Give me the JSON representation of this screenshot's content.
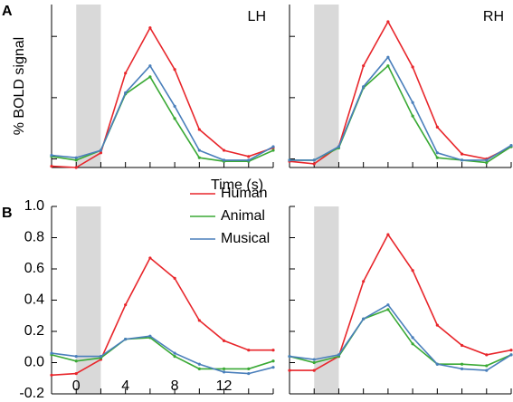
{
  "chart_data": [
    {
      "type": "line",
      "panel_label": "A",
      "title": "LH",
      "ylabel": "% BOLD signal",
      "xlabel": "Time (s)",
      "x": [
        -2,
        0,
        2,
        4,
        6,
        8,
        10,
        12,
        14,
        16
      ],
      "xlim": [
        -2,
        16
      ],
      "minor_xticks": [
        -2,
        0,
        2,
        4,
        6,
        8,
        10,
        12,
        14,
        16
      ],
      "ylim": [
        -0.07,
        1.26
      ],
      "yticks": [
        0,
        0.5,
        1
      ],
      "show_ytick_labels": false,
      "shade": [
        0,
        2
      ],
      "series": [
        {
          "name": "Human",
          "color": "#e8262b",
          "values": [
            -0.06,
            -0.07,
            0.05,
            0.7,
            1.07,
            0.73,
            0.24,
            0.07,
            0.02,
            0.09
          ]
        },
        {
          "name": "Animal",
          "color": "#3aa935",
          "values": [
            0.02,
            -0.01,
            0.07,
            0.53,
            0.67,
            0.33,
            0.01,
            -0.02,
            -0.02,
            0.07
          ]
        },
        {
          "name": "Musical",
          "color": "#4a7fbb",
          "values": [
            0.03,
            0.01,
            0.07,
            0.54,
            0.76,
            0.43,
            0.07,
            -0.01,
            -0.01,
            0.1
          ]
        }
      ]
    },
    {
      "type": "line",
      "title": "RH",
      "x": [
        -2,
        0,
        2,
        4,
        6,
        8,
        10,
        12,
        14,
        16
      ],
      "xlim": [
        -2,
        16
      ],
      "minor_xticks": [
        -2,
        0,
        2,
        4,
        6,
        8,
        10,
        12,
        14,
        16
      ],
      "ylim": [
        -0.07,
        1.26
      ],
      "yticks": [
        0,
        0.5,
        1
      ],
      "show_ytick_labels": false,
      "shade": [
        0,
        2
      ],
      "series": [
        {
          "name": "Human",
          "color": "#e8262b",
          "values": [
            -0.02,
            -0.04,
            0.1,
            0.76,
            1.12,
            0.75,
            0.26,
            0.04,
            0.0,
            0.1
          ]
        },
        {
          "name": "Animal",
          "color": "#3aa935",
          "values": [
            -0.01,
            -0.01,
            0.09,
            0.58,
            0.76,
            0.35,
            0.01,
            -0.01,
            -0.03,
            0.1
          ]
        },
        {
          "name": "Musical",
          "color": "#4a7fbb",
          "values": [
            -0.01,
            -0.01,
            0.1,
            0.59,
            0.83,
            0.46,
            0.05,
            -0.01,
            -0.01,
            0.11
          ]
        }
      ]
    },
    {
      "type": "line",
      "panel_label": "B",
      "legend": "upper right",
      "x": [
        -2,
        0,
        2,
        4,
        6,
        8,
        10,
        12,
        14,
        16
      ],
      "xlim": [
        -2,
        16
      ],
      "xticks": [
        0,
        4,
        8,
        12
      ],
      "minor_xticks": [
        -2,
        0,
        2,
        4,
        6,
        8,
        10,
        12,
        14,
        16
      ],
      "ylim": [
        -0.2,
        1.0
      ],
      "yticks": [
        {
          "value": -0.2,
          "label": "-0.2"
        },
        {
          "value": 0,
          "label": "0.0"
        },
        0.2,
        0.4,
        0.6,
        0.8,
        {
          "value": 1,
          "label": "1.0"
        }
      ],
      "show_ytick_labels": true,
      "shade": [
        0,
        2
      ],
      "series": [
        {
          "name": "Human",
          "color": "#e8262b",
          "values": [
            -0.08,
            -0.07,
            0.02,
            0.37,
            0.67,
            0.54,
            0.27,
            0.14,
            0.08,
            0.08
          ]
        },
        {
          "name": "Animal",
          "color": "#3aa935",
          "values": [
            0.05,
            0.01,
            0.03,
            0.15,
            0.16,
            0.04,
            -0.04,
            -0.04,
            -0.04,
            0.01
          ]
        },
        {
          "name": "Musical",
          "color": "#4a7fbb",
          "values": [
            0.06,
            0.04,
            0.04,
            0.15,
            0.17,
            0.06,
            -0.01,
            -0.06,
            -0.07,
            -0.03
          ]
        }
      ]
    },
    {
      "type": "line",
      "x": [
        -2,
        0,
        2,
        4,
        6,
        8,
        10,
        12,
        14,
        16
      ],
      "xlim": [
        -2,
        16
      ],
      "minor_xticks": [
        -2,
        0,
        2,
        4,
        6,
        8,
        10,
        12,
        14,
        16
      ],
      "ylim": [
        -0.2,
        1.0
      ],
      "yticks": [
        -0.2,
        0,
        0.2,
        0.4,
        0.6,
        0.8,
        1
      ],
      "show_ytick_labels": false,
      "shade": [
        0,
        2
      ],
      "series": [
        {
          "name": "Human",
          "color": "#e8262b",
          "values": [
            -0.05,
            -0.05,
            0.04,
            0.52,
            0.82,
            0.59,
            0.24,
            0.11,
            0.05,
            0.08
          ]
        },
        {
          "name": "Animal",
          "color": "#3aa935",
          "values": [
            0.04,
            0.0,
            0.04,
            0.28,
            0.34,
            0.12,
            -0.01,
            -0.01,
            -0.02,
            0.05
          ]
        },
        {
          "name": "Musical",
          "color": "#4a7fbb",
          "values": [
            0.04,
            0.02,
            0.05,
            0.28,
            0.37,
            0.16,
            -0.01,
            -0.04,
            -0.05,
            0.05
          ]
        }
      ]
    }
  ]
}
